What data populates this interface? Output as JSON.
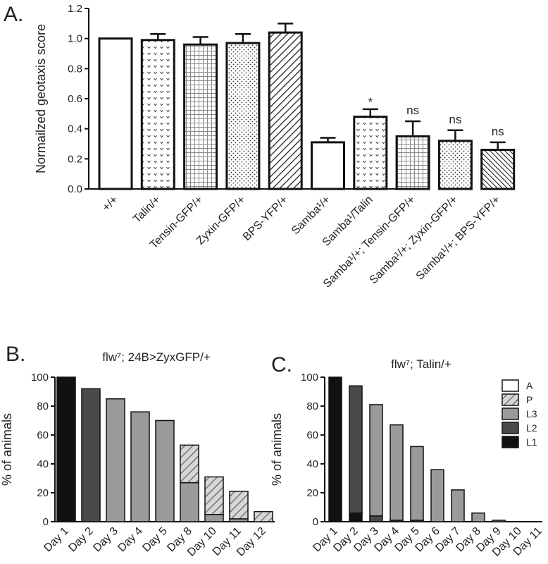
{
  "chart_data": [
    {
      "type": "bar",
      "panel": "A.",
      "title": "",
      "ylabel": "Normailzed geotaxis score",
      "xlabel": "",
      "ylim": [
        0,
        1.2
      ],
      "yticks": [
        "0.0",
        "0.2",
        "0.4",
        "0.6",
        "0.8",
        "1.0",
        "1.2"
      ],
      "categories": [
        "+/+",
        "Talin/+",
        "Tensin-GFP/+",
        "Zyxin-GFP/+",
        "BPS-YFP/+",
        "Samba¹/+",
        "Samba¹/Talin",
        "Samba¹/+; Tensin-GFP/+",
        "Samba¹/+; Zyxin-GFP/+",
        "Samba¹/+; BPS-YFP/+"
      ],
      "values": [
        1.0,
        0.99,
        0.96,
        0.97,
        1.04,
        0.31,
        0.48,
        0.35,
        0.32,
        0.26
      ],
      "errors": [
        0.0,
        0.04,
        0.05,
        0.06,
        0.06,
        0.03,
        0.05,
        0.1,
        0.07,
        0.05
      ],
      "patterns": [
        "none",
        "chevron",
        "grid",
        "dots",
        "diag",
        "none",
        "chevron",
        "grid",
        "dots",
        "diagdense"
      ],
      "annotations": [
        "",
        "",
        "",
        "",
        "",
        "",
        "*",
        "ns",
        "ns",
        "ns"
      ],
      "grid": false
    },
    {
      "type": "bar",
      "stacked": true,
      "panel": "B.",
      "title": "flw⁷; 24B>ZyxGFP/+",
      "ylabel": "% of animals",
      "xlabel": "",
      "ylim": [
        0,
        100
      ],
      "yticks": [
        "0",
        "20",
        "40",
        "60",
        "80",
        "100"
      ],
      "categories": [
        "Day 1",
        "Day 2",
        "Day 3",
        "Day 4",
        "Day 5",
        "Day 8",
        "Day 10",
        "Day 11",
        "Day 12"
      ],
      "series": [
        {
          "name": "L1",
          "values": [
            100,
            0,
            0,
            0,
            0,
            0,
            0,
            0,
            0
          ]
        },
        {
          "name": "L2",
          "values": [
            0,
            92,
            0,
            0,
            0,
            0,
            0,
            0,
            0
          ]
        },
        {
          "name": "L3",
          "values": [
            0,
            0,
            85,
            76,
            70,
            27,
            5,
            2,
            0
          ]
        },
        {
          "name": "P",
          "values": [
            0,
            0,
            0,
            0,
            0,
            26,
            26,
            19,
            7
          ]
        },
        {
          "name": "A",
          "values": [
            0,
            0,
            0,
            0,
            0,
            0,
            0,
            0,
            0
          ]
        }
      ],
      "grid": false
    },
    {
      "type": "bar",
      "stacked": true,
      "panel": "C.",
      "title": "flw⁷; Talin/+",
      "ylabel": "% of animals",
      "xlabel": "",
      "ylim": [
        0,
        100
      ],
      "yticks": [
        "0",
        "20",
        "40",
        "60",
        "80",
        "100"
      ],
      "categories": [
        "Day 1",
        "Day 2",
        "Day 3",
        "Day 4",
        "Day 5",
        "Day 6",
        "Day 7",
        "Day 8",
        "Day 9",
        "Day 10",
        "Day 11"
      ],
      "series": [
        {
          "name": "L1",
          "values": [
            100,
            6,
            0,
            0,
            0,
            0,
            0,
            0,
            0,
            0,
            0
          ]
        },
        {
          "name": "L2",
          "values": [
            0,
            88,
            4,
            1,
            1,
            0,
            0,
            0,
            0,
            0,
            0
          ]
        },
        {
          "name": "L3",
          "values": [
            0,
            0,
            77,
            66,
            51,
            36,
            22,
            6,
            1,
            0,
            0
          ]
        },
        {
          "name": "P",
          "values": [
            0,
            0,
            0,
            0,
            0,
            0,
            0,
            0,
            0,
            0,
            0
          ]
        },
        {
          "name": "A",
          "values": [
            0,
            0,
            0,
            0,
            0,
            0,
            0,
            0,
            0,
            0,
            0
          ]
        }
      ],
      "legend": {
        "position": "top-right",
        "entries": [
          "A",
          "P",
          "L3",
          "L2",
          "L1"
        ]
      },
      "grid": false
    }
  ],
  "colors": {
    "L1": "#111111",
    "L2": "#4a4a4a",
    "L3": "#9a9a9a",
    "P": "#d6d6d6",
    "A": "#ffffff",
    "grid_pattern": "#8a8a8a",
    "axis": "#111111"
  }
}
